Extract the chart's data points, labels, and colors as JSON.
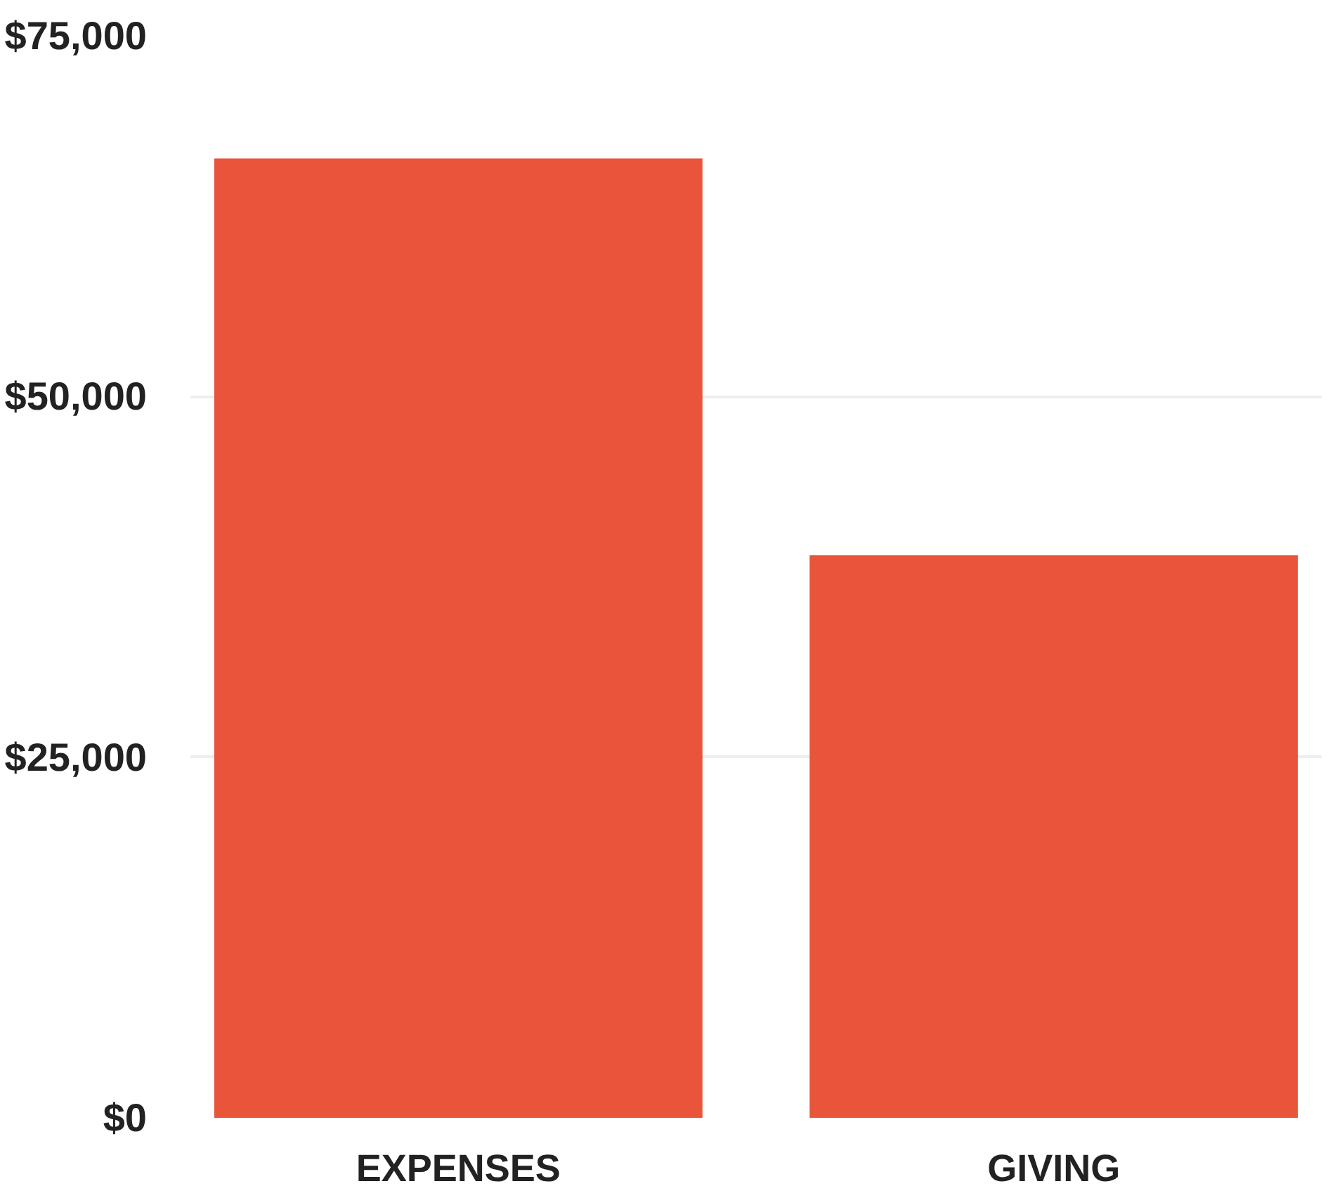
{
  "chart_data": {
    "type": "bar",
    "categories": [
      "EXPENSES",
      "GIVING"
    ],
    "values": [
      66500,
      39000
    ],
    "color": "#e8553a",
    "ylim": [
      0,
      75000
    ],
    "yticks": [
      {
        "value": 0,
        "label": "$0"
      },
      {
        "value": 25000,
        "label": "$25,000"
      },
      {
        "value": 50000,
        "label": "$50,000"
      },
      {
        "value": 75000,
        "label": "$75,000"
      }
    ],
    "grid": "y"
  }
}
